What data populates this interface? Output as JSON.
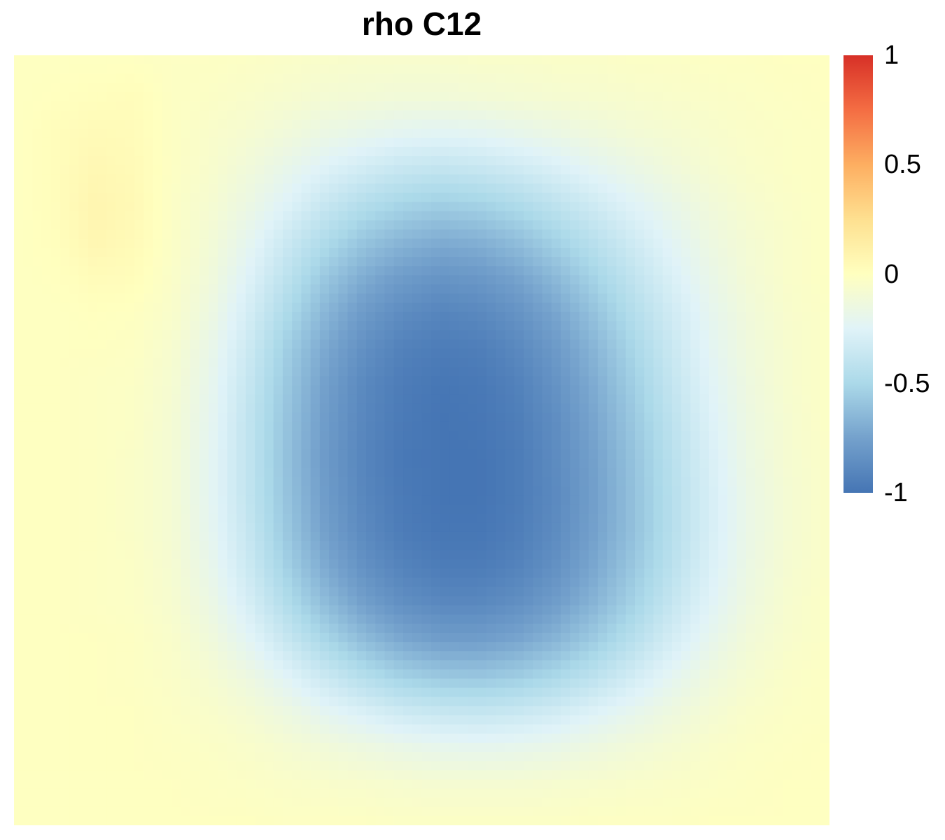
{
  "chart_data": {
    "type": "heatmap",
    "title": "rho C12",
    "xlabel": "",
    "ylabel": "",
    "value_range": [
      -1,
      1
    ],
    "colorscale": [
      {
        "value": -1,
        "color": "#4575b4"
      },
      {
        "value": -0.75,
        "color": "#74a1cc"
      },
      {
        "value": -0.5,
        "color": "#abd9e9"
      },
      {
        "value": -0.25,
        "color": "#e0f3f8"
      },
      {
        "value": 0,
        "color": "#ffffbf"
      },
      {
        "value": 0.25,
        "color": "#fee090"
      },
      {
        "value": 0.5,
        "color": "#fdae61"
      },
      {
        "value": 0.75,
        "color": "#f46d43"
      },
      {
        "value": 1,
        "color": "#d73027"
      }
    ],
    "colorbar": {
      "ticks": [
        {
          "value": 1,
          "label": "1"
        },
        {
          "value": 0.5,
          "label": "0.5"
        },
        {
          "value": 0,
          "label": "0"
        },
        {
          "value": -0.5,
          "label": "-0.5"
        },
        {
          "value": -1,
          "label": "-1"
        }
      ]
    },
    "rows": 22,
    "cols": 22,
    "z": [
      [
        -0.01,
        -0.01,
        -0.01,
        -0.01,
        -0.02,
        -0.02,
        -0.03,
        -0.04,
        -0.05,
        -0.06,
        -0.06,
        -0.06,
        -0.05,
        -0.05,
        -0.04,
        -0.04,
        -0.03,
        -0.03,
        -0.02,
        -0.02,
        -0.01,
        -0.01
      ],
      [
        -0.01,
        0.0,
        0.01,
        0.02,
        -0.02,
        -0.03,
        -0.05,
        -0.07,
        -0.09,
        -0.1,
        -0.11,
        -0.11,
        -0.1,
        -0.09,
        -0.08,
        -0.07,
        -0.06,
        -0.05,
        -0.04,
        -0.03,
        -0.02,
        -0.01
      ],
      [
        -0.01,
        0.02,
        0.04,
        0.03,
        -0.02,
        -0.05,
        -0.08,
        -0.12,
        -0.16,
        -0.19,
        -0.22,
        -0.23,
        -0.22,
        -0.19,
        -0.16,
        -0.13,
        -0.1,
        -0.08,
        -0.06,
        -0.04,
        -0.03,
        -0.02
      ],
      [
        -0.01,
        0.02,
        0.06,
        0.04,
        -0.02,
        -0.06,
        -0.12,
        -0.19,
        -0.26,
        -0.32,
        -0.37,
        -0.39,
        -0.37,
        -0.33,
        -0.28,
        -0.22,
        -0.17,
        -0.12,
        -0.08,
        -0.05,
        -0.03,
        -0.02
      ],
      [
        -0.01,
        0.02,
        0.08,
        0.05,
        -0.03,
        -0.08,
        -0.16,
        -0.26,
        -0.37,
        -0.46,
        -0.52,
        -0.55,
        -0.53,
        -0.48,
        -0.41,
        -0.33,
        -0.25,
        -0.18,
        -0.12,
        -0.07,
        -0.04,
        -0.02
      ],
      [
        -0.01,
        0.01,
        0.07,
        0.04,
        -0.03,
        -0.1,
        -0.21,
        -0.35,
        -0.48,
        -0.59,
        -0.66,
        -0.7,
        -0.68,
        -0.62,
        -0.53,
        -0.43,
        -0.33,
        -0.23,
        -0.15,
        -0.09,
        -0.05,
        -0.02
      ],
      [
        -0.01,
        0.0,
        0.03,
        0.02,
        -0.04,
        -0.12,
        -0.26,
        -0.42,
        -0.58,
        -0.7,
        -0.78,
        -0.82,
        -0.8,
        -0.74,
        -0.64,
        -0.52,
        -0.4,
        -0.28,
        -0.18,
        -0.1,
        -0.05,
        -0.02
      ],
      [
        -0.01,
        -0.01,
        0.0,
        -0.01,
        -0.05,
        -0.15,
        -0.31,
        -0.49,
        -0.66,
        -0.79,
        -0.87,
        -0.91,
        -0.89,
        -0.83,
        -0.73,
        -0.6,
        -0.46,
        -0.33,
        -0.21,
        -0.12,
        -0.06,
        -0.03
      ],
      [
        -0.01,
        -0.01,
        -0.01,
        -0.02,
        -0.07,
        -0.18,
        -0.35,
        -0.55,
        -0.72,
        -0.85,
        -0.93,
        -0.96,
        -0.95,
        -0.89,
        -0.79,
        -0.66,
        -0.51,
        -0.36,
        -0.23,
        -0.13,
        -0.07,
        -0.03
      ],
      [
        -0.01,
        -0.01,
        -0.02,
        -0.03,
        -0.08,
        -0.2,
        -0.38,
        -0.58,
        -0.76,
        -0.89,
        -0.96,
        -0.99,
        -0.98,
        -0.93,
        -0.83,
        -0.7,
        -0.55,
        -0.39,
        -0.25,
        -0.14,
        -0.07,
        -0.03
      ],
      [
        -0.01,
        -0.01,
        -0.02,
        -0.03,
        -0.09,
        -0.21,
        -0.4,
        -0.6,
        -0.78,
        -0.9,
        -0.97,
        -1.0,
        -0.99,
        -0.95,
        -0.86,
        -0.73,
        -0.58,
        -0.42,
        -0.27,
        -0.15,
        -0.08,
        -0.03
      ],
      [
        -0.01,
        -0.01,
        -0.02,
        -0.04,
        -0.09,
        -0.22,
        -0.4,
        -0.61,
        -0.79,
        -0.91,
        -0.98,
        -1.0,
        -1.0,
        -0.96,
        -0.87,
        -0.75,
        -0.6,
        -0.44,
        -0.29,
        -0.16,
        -0.08,
        -0.04
      ],
      [
        -0.01,
        -0.01,
        -0.02,
        -0.04,
        -0.09,
        -0.22,
        -0.4,
        -0.6,
        -0.78,
        -0.9,
        -0.97,
        -1.0,
        -1.0,
        -0.96,
        -0.88,
        -0.76,
        -0.61,
        -0.45,
        -0.3,
        -0.17,
        -0.09,
        -0.04
      ],
      [
        -0.01,
        -0.01,
        -0.02,
        -0.04,
        -0.09,
        -0.21,
        -0.38,
        -0.58,
        -0.76,
        -0.88,
        -0.96,
        -0.99,
        -0.99,
        -0.95,
        -0.87,
        -0.75,
        -0.61,
        -0.45,
        -0.3,
        -0.17,
        -0.09,
        -0.04
      ],
      [
        -0.01,
        -0.01,
        -0.02,
        -0.03,
        -0.08,
        -0.19,
        -0.35,
        -0.54,
        -0.71,
        -0.84,
        -0.92,
        -0.96,
        -0.96,
        -0.92,
        -0.84,
        -0.72,
        -0.58,
        -0.43,
        -0.28,
        -0.16,
        -0.08,
        -0.04
      ],
      [
        -0.01,
        -0.01,
        -0.02,
        -0.03,
        -0.07,
        -0.16,
        -0.3,
        -0.47,
        -0.63,
        -0.76,
        -0.85,
        -0.89,
        -0.89,
        -0.85,
        -0.77,
        -0.66,
        -0.53,
        -0.38,
        -0.25,
        -0.14,
        -0.07,
        -0.03
      ],
      [
        -0.01,
        -0.01,
        -0.01,
        -0.02,
        -0.05,
        -0.12,
        -0.23,
        -0.37,
        -0.51,
        -0.63,
        -0.72,
        -0.77,
        -0.77,
        -0.73,
        -0.66,
        -0.56,
        -0.44,
        -0.31,
        -0.2,
        -0.11,
        -0.06,
        -0.03
      ],
      [
        -0.01,
        -0.01,
        -0.01,
        -0.02,
        -0.04,
        -0.08,
        -0.15,
        -0.25,
        -0.36,
        -0.46,
        -0.54,
        -0.58,
        -0.59,
        -0.56,
        -0.5,
        -0.42,
        -0.32,
        -0.22,
        -0.14,
        -0.08,
        -0.04,
        -0.02
      ],
      [
        -0.01,
        -0.01,
        -0.01,
        -0.01,
        -0.03,
        -0.05,
        -0.09,
        -0.15,
        -0.22,
        -0.28,
        -0.34,
        -0.37,
        -0.38,
        -0.36,
        -0.32,
        -0.26,
        -0.2,
        -0.14,
        -0.09,
        -0.05,
        -0.03,
        -0.02
      ],
      [
        -0.01,
        -0.01,
        -0.01,
        -0.01,
        -0.02,
        -0.03,
        -0.05,
        -0.08,
        -0.11,
        -0.14,
        -0.17,
        -0.19,
        -0.2,
        -0.19,
        -0.17,
        -0.14,
        -0.11,
        -0.08,
        -0.05,
        -0.03,
        -0.02,
        -0.01
      ],
      [
        -0.01,
        -0.01,
        -0.01,
        -0.01,
        -0.01,
        -0.02,
        -0.03,
        -0.04,
        -0.05,
        -0.06,
        -0.07,
        -0.08,
        -0.08,
        -0.08,
        -0.07,
        -0.06,
        -0.05,
        -0.04,
        -0.03,
        -0.02,
        -0.01,
        -0.01
      ],
      [
        -0.01,
        -0.01,
        -0.01,
        -0.01,
        -0.01,
        -0.01,
        -0.01,
        -0.02,
        -0.02,
        -0.02,
        -0.03,
        -0.03,
        -0.03,
        -0.03,
        -0.03,
        -0.02,
        -0.02,
        -0.02,
        -0.01,
        -0.01,
        -0.01,
        -0.01
      ]
    ]
  }
}
